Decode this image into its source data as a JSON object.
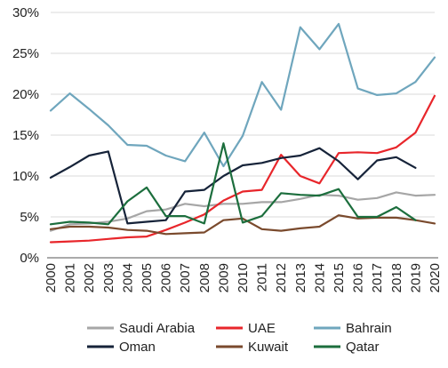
{
  "chart_data": {
    "type": "line",
    "title": "",
    "xlabel": "",
    "ylabel": "",
    "ylim": [
      0,
      30
    ],
    "y_ticks": [
      "0%",
      "5%",
      "10%",
      "15%",
      "20%",
      "25%",
      "30%"
    ],
    "y_tick_values": [
      0,
      5,
      10,
      15,
      20,
      25,
      30
    ],
    "x": [
      "2000",
      "2001",
      "2002",
      "2003",
      "2004",
      "2005",
      "2006",
      "2007",
      "2008",
      "2009",
      "2010",
      "2011",
      "2012",
      "2013",
      "2014",
      "2015",
      "2016",
      "2017",
      "2018",
      "2019",
      "2020"
    ],
    "grid": "horizontal",
    "legend_position": "bottom",
    "series": [
      {
        "name": "Saudi Arabia",
        "color": "#a6a6a6",
        "values": [
          3.3,
          4.1,
          4.2,
          4.4,
          4.8,
          5.7,
          5.9,
          6.6,
          6.3,
          6.6,
          6.6,
          6.8,
          6.8,
          7.2,
          7.7,
          7.6,
          7.1,
          7.3,
          8.0,
          7.6,
          7.7
        ]
      },
      {
        "name": "UAE",
        "color": "#e8262b",
        "values": [
          1.9,
          2.0,
          2.1,
          2.3,
          2.5,
          2.6,
          3.4,
          4.3,
          5.3,
          7.0,
          8.1,
          8.3,
          12.6,
          10.0,
          9.1,
          12.8,
          12.9,
          12.8,
          13.5,
          15.3,
          19.8
        ]
      },
      {
        "name": "Bahrain",
        "color": "#6fa6bd",
        "values": [
          18.0,
          20.1,
          18.2,
          16.2,
          13.8,
          13.7,
          12.5,
          11.8,
          15.3,
          11.2,
          14.9,
          21.5,
          18.1,
          28.2,
          25.5,
          28.6,
          20.7,
          19.9,
          20.1,
          21.5,
          24.5
        ]
      },
      {
        "name": "Oman",
        "color": "#162339",
        "values": [
          9.8,
          11.1,
          12.5,
          13.0,
          4.2,
          4.4,
          4.6,
          8.1,
          8.3,
          10.0,
          11.3,
          11.6,
          12.2,
          12.5,
          13.4,
          11.8,
          9.6,
          11.9,
          12.3,
          11.0,
          null
        ]
      },
      {
        "name": "Kuwait",
        "color": "#7a4a2d",
        "values": [
          3.5,
          3.8,
          3.8,
          3.7,
          3.4,
          3.3,
          2.9,
          3.0,
          3.1,
          4.6,
          4.8,
          3.5,
          3.3,
          3.6,
          3.8,
          5.2,
          4.8,
          4.9,
          4.9,
          4.6,
          4.2
        ]
      },
      {
        "name": "Qatar",
        "color": "#1c6e3d",
        "values": [
          4.1,
          4.4,
          4.3,
          4.1,
          6.9,
          8.6,
          5.1,
          5.1,
          4.2,
          14.0,
          4.3,
          5.1,
          7.9,
          7.7,
          7.6,
          8.4,
          5.0,
          5.0,
          6.2,
          4.6,
          null
        ]
      }
    ]
  }
}
